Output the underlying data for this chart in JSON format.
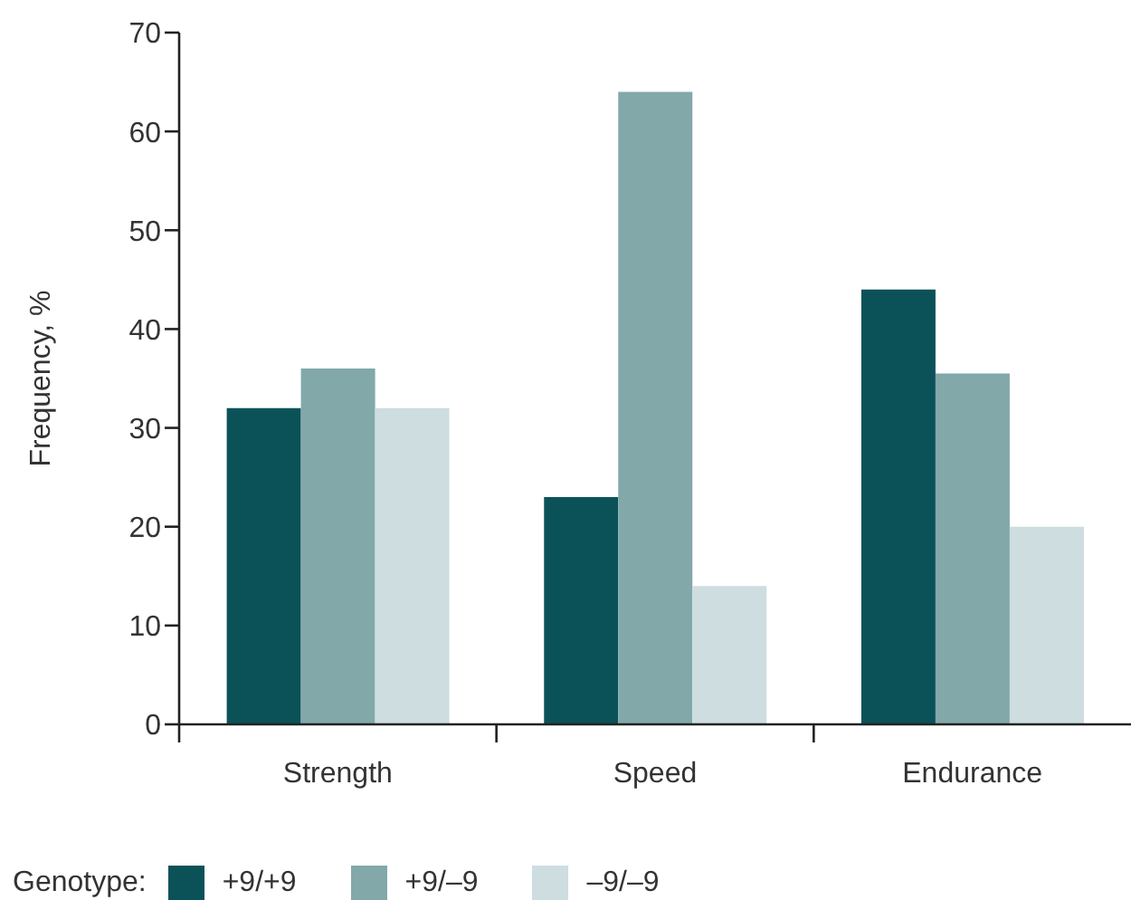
{
  "chart_data": {
    "type": "bar",
    "ylabel": "Frequency, %",
    "legend_title": "Genotype:",
    "categories": [
      "Strength",
      "Speed",
      "Endurance"
    ],
    "series": [
      {
        "name": "+9/+9",
        "color": "#0b5258",
        "values": [
          32,
          23,
          44
        ]
      },
      {
        "name": "+9/–9",
        "color": "#82a8aa",
        "values": [
          36,
          64,
          35.5
        ]
      },
      {
        "name": "–9/–9",
        "color": "#cddde0",
        "values": [
          32,
          14,
          20
        ]
      }
    ],
    "ylim": [
      0,
      70
    ],
    "yticks": [
      0,
      10,
      20,
      30,
      40,
      50,
      60,
      70
    ],
    "grid": false,
    "legend": "bottom left"
  }
}
